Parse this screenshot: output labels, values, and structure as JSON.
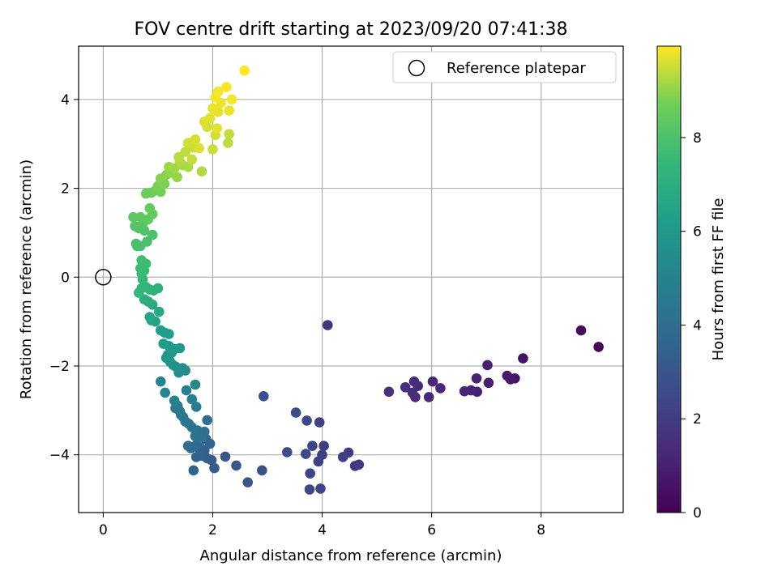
{
  "chart_data": {
    "type": "scatter",
    "title": "FOV centre drift starting at 2023/09/20 07:41:38",
    "xlabel": "Angular distance from reference (arcmin)",
    "ylabel": "Rotation from reference (arcmin)",
    "xlim": [
      -0.45,
      9.5
    ],
    "ylim": [
      -5.3,
      5.2
    ],
    "xticks": [
      0,
      2,
      4,
      6,
      8
    ],
    "yticks": [
      -4,
      -2,
      0,
      2,
      4
    ],
    "xtick_labels": [
      "0",
      "2",
      "4",
      "6",
      "8"
    ],
    "ytick_labels": [
      "−4",
      "−2",
      "0",
      "2",
      "4"
    ],
    "grid": true,
    "legend": {
      "placement": "upper-right",
      "entries": [
        "Reference platepar"
      ]
    },
    "reference_point": {
      "x": 0,
      "y": 0,
      "label": "Reference platepar"
    },
    "colorbar": {
      "label": "Hours from first FF file",
      "colormap": "viridis",
      "range": [
        0,
        9.95
      ],
      "ticks": [
        0,
        2,
        4,
        6,
        8
      ],
      "tick_labels": [
        "0",
        "2",
        "4",
        "6",
        "8"
      ]
    },
    "points": [
      [
        9.05,
        -1.57,
        0.2
      ],
      [
        8.73,
        -1.2,
        0.35
      ],
      [
        7.67,
        -1.83,
        0.6
      ],
      [
        7.52,
        -2.28,
        0.7
      ],
      [
        7.44,
        -2.3,
        0.75
      ],
      [
        7.38,
        -2.22,
        0.8
      ],
      [
        7.04,
        -2.38,
        0.9
      ],
      [
        7.02,
        -1.98,
        0.95
      ],
      [
        6.83,
        -2.58,
        1.0
      ],
      [
        6.82,
        -2.28,
        1.05
      ],
      [
        6.72,
        -2.55,
        1.1
      ],
      [
        6.6,
        -2.57,
        1.15
      ],
      [
        6.16,
        -2.5,
        1.2
      ],
      [
        6.02,
        -2.35,
        1.25
      ],
      [
        5.95,
        -2.7,
        1.3
      ],
      [
        5.75,
        -2.45,
        1.35
      ],
      [
        5.7,
        -2.7,
        1.4
      ],
      [
        5.68,
        -2.35,
        1.45
      ],
      [
        5.65,
        -2.6,
        1.5
      ],
      [
        5.52,
        -2.48,
        1.55
      ],
      [
        5.22,
        -2.58,
        1.6
      ],
      [
        4.1,
        -1.08,
        1.7
      ],
      [
        4.67,
        -4.22,
        1.85
      ],
      [
        4.6,
        -4.25,
        1.9
      ],
      [
        4.48,
        -3.95,
        1.95
      ],
      [
        4.38,
        -4.05,
        2.0
      ],
      [
        4.03,
        -3.8,
        2.05
      ],
      [
        4.0,
        -4.0,
        2.1
      ],
      [
        3.95,
        -3.27,
        2.15
      ],
      [
        3.93,
        -4.15,
        2.2
      ],
      [
        3.97,
        -4.76,
        2.25
      ],
      [
        3.82,
        -3.8,
        2.3
      ],
      [
        3.78,
        -4.42,
        2.35
      ],
      [
        3.77,
        -4.78,
        2.4
      ],
      [
        3.7,
        -3.98,
        2.45
      ],
      [
        3.72,
        -3.23,
        2.5
      ],
      [
        3.52,
        -3.05,
        2.55
      ],
      [
        3.36,
        -3.94,
        2.6
      ],
      [
        2.93,
        -2.68,
        2.75
      ],
      [
        2.9,
        -4.35,
        2.85
      ],
      [
        2.64,
        -4.62,
        2.95
      ],
      [
        2.43,
        -4.24,
        3.05
      ],
      [
        2.23,
        -4.04,
        3.1
      ],
      [
        2.03,
        -4.3,
        3.2
      ],
      [
        1.98,
        -4.12,
        3.3
      ],
      [
        1.9,
        -4.08,
        3.35
      ],
      [
        1.85,
        -3.9,
        3.4
      ],
      [
        1.8,
        -4.02,
        3.45
      ],
      [
        1.75,
        -3.85,
        3.5
      ],
      [
        1.7,
        -4.05,
        3.55
      ],
      [
        1.65,
        -4.35,
        3.6
      ],
      [
        1.95,
        -3.75,
        3.65
      ],
      [
        1.88,
        -3.65,
        3.7
      ],
      [
        1.82,
        -3.58,
        3.75
      ],
      [
        1.76,
        -3.72,
        3.8
      ],
      [
        1.7,
        -3.78,
        3.85
      ],
      [
        1.6,
        -3.85,
        3.9
      ],
      [
        1.55,
        -3.8,
        3.95
      ],
      [
        1.9,
        -3.22,
        4.0
      ],
      [
        1.85,
        -3.48,
        4.05
      ],
      [
        1.8,
        -3.62,
        4.1
      ],
      [
        1.72,
        -3.45,
        4.15
      ],
      [
        1.68,
        -3.58,
        4.2
      ],
      [
        1.62,
        -3.38,
        4.25
      ],
      [
        1.56,
        -3.3,
        4.3
      ],
      [
        1.5,
        -3.25,
        4.35
      ],
      [
        1.46,
        -3.15,
        4.4
      ],
      [
        1.4,
        -3.02,
        4.45
      ],
      [
        1.36,
        -2.9,
        4.5
      ],
      [
        1.32,
        -2.95,
        4.55
      ],
      [
        1.42,
        -3.1,
        4.6
      ],
      [
        1.7,
        -2.92,
        4.7
      ],
      [
        1.62,
        -2.75,
        4.8
      ],
      [
        1.52,
        -2.55,
        4.9
      ],
      [
        1.3,
        -2.78,
        5.0
      ],
      [
        1.05,
        -2.35,
        5.1
      ],
      [
        1.13,
        -2.6,
        5.2
      ],
      [
        1.68,
        -2.42,
        5.3
      ],
      [
        1.5,
        -2.1,
        5.4
      ],
      [
        1.45,
        -2.05,
        5.5
      ],
      [
        1.38,
        -2.15,
        5.6
      ],
      [
        1.33,
        -2.02,
        5.7
      ],
      [
        1.28,
        -1.98,
        5.75
      ],
      [
        1.22,
        -1.9,
        5.8
      ],
      [
        1.18,
        -1.75,
        5.85
      ],
      [
        1.15,
        -1.82,
        5.9
      ],
      [
        1.25,
        -1.7,
        5.95
      ],
      [
        1.4,
        -1.6,
        6.0
      ],
      [
        1.3,
        -1.62,
        6.05
      ],
      [
        1.2,
        -1.55,
        6.1
      ],
      [
        1.1,
        -1.5,
        6.15
      ],
      [
        1.05,
        -1.2,
        6.2
      ],
      [
        1.12,
        -1.25,
        6.25
      ],
      [
        1.2,
        -1.28,
        6.3
      ],
      [
        0.95,
        -1.0,
        6.4
      ],
      [
        0.88,
        -0.97,
        6.5
      ],
      [
        0.85,
        -0.9,
        6.6
      ],
      [
        1.02,
        -0.78,
        6.7
      ],
      [
        0.9,
        -0.62,
        6.8
      ],
      [
        0.82,
        -0.55,
        6.9
      ],
      [
        0.75,
        -0.5,
        7.0
      ],
      [
        1.0,
        -0.25,
        7.1
      ],
      [
        0.92,
        -0.3,
        7.2
      ],
      [
        0.85,
        -0.28,
        7.25
      ],
      [
        0.78,
        -0.22,
        7.3
      ],
      [
        0.7,
        -0.25,
        7.35
      ],
      [
        0.65,
        -0.35,
        7.4
      ],
      [
        0.72,
        -0.05,
        7.45
      ],
      [
        0.7,
        0.08,
        7.5
      ],
      [
        0.75,
        0.15,
        7.55
      ],
      [
        0.68,
        0.2,
        7.6
      ],
      [
        0.78,
        0.3,
        7.65
      ],
      [
        0.7,
        0.38,
        7.7
      ],
      [
        0.62,
        0.7,
        7.8
      ],
      [
        0.6,
        0.75,
        7.85
      ],
      [
        0.68,
        0.7,
        7.9
      ],
      [
        0.8,
        0.8,
        7.95
      ],
      [
        0.9,
        0.95,
        8.0
      ],
      [
        0.75,
        1.05,
        8.05
      ],
      [
        0.65,
        1.1,
        8.1
      ],
      [
        0.58,
        1.15,
        8.15
      ],
      [
        0.72,
        1.2,
        8.2
      ],
      [
        0.55,
        1.35,
        8.3
      ],
      [
        0.68,
        1.35,
        8.35
      ],
      [
        0.82,
        1.3,
        8.4
      ],
      [
        0.9,
        1.42,
        8.45
      ],
      [
        0.85,
        1.55,
        8.5
      ],
      [
        0.88,
        1.9,
        8.6
      ],
      [
        0.78,
        1.88,
        8.65
      ],
      [
        0.95,
        1.95,
        8.7
      ],
      [
        1.05,
        1.92,
        8.75
      ],
      [
        1.0,
        2.05,
        8.8
      ],
      [
        1.12,
        2.1,
        8.85
      ],
      [
        1.05,
        2.22,
        8.9
      ],
      [
        1.15,
        2.3,
        8.95
      ],
      [
        1.25,
        2.35,
        9.0
      ],
      [
        1.35,
        2.25,
        9.05
      ],
      [
        1.2,
        2.48,
        9.1
      ],
      [
        1.3,
        2.45,
        9.15
      ],
      [
        1.45,
        2.52,
        9.2
      ],
      [
        1.55,
        2.48,
        9.25
      ],
      [
        1.4,
        2.6,
        9.3
      ],
      [
        1.38,
        2.7,
        9.35
      ],
      [
        1.5,
        2.82,
        9.4
      ],
      [
        1.62,
        2.65,
        9.45
      ],
      [
        1.65,
        2.92,
        9.5
      ],
      [
        1.55,
        3.02,
        9.55
      ],
      [
        1.68,
        3.1,
        9.6
      ],
      [
        1.75,
        2.9,
        9.65
      ],
      [
        1.8,
        2.38,
        9.3
      ],
      [
        2.28,
        3.02,
        9.4
      ],
      [
        2.3,
        3.22,
        9.45
      ],
      [
        2.0,
        2.88,
        9.5
      ],
      [
        2.05,
        3.2,
        9.55
      ],
      [
        1.9,
        3.38,
        9.6
      ],
      [
        1.85,
        3.5,
        9.65
      ],
      [
        1.95,
        3.58,
        9.7
      ],
      [
        2.08,
        3.35,
        9.72
      ],
      [
        2.1,
        3.72,
        9.75
      ],
      [
        2.3,
        3.75,
        9.78
      ],
      [
        2.0,
        3.8,
        9.8
      ],
      [
        2.15,
        3.92,
        9.82
      ],
      [
        2.05,
        4.05,
        9.85
      ],
      [
        2.1,
        4.18,
        9.88
      ],
      [
        2.35,
        4.0,
        9.9
      ],
      [
        2.25,
        4.28,
        9.92
      ],
      [
        2.58,
        4.65,
        9.95
      ]
    ]
  }
}
